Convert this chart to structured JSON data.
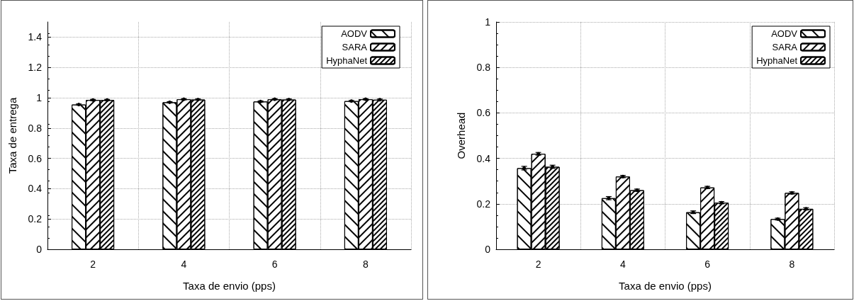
{
  "chart_data": [
    {
      "type": "bar",
      "xlabel": "Taxa de envio (pps)",
      "ylabel": "Taxa de entrega",
      "categories": [
        "2",
        "4",
        "6",
        "8"
      ],
      "ylim": [
        0,
        1.5
      ],
      "yticks": [
        0,
        0.2,
        0.4,
        0.6,
        0.8,
        1,
        1.2,
        1.4
      ],
      "grid": true,
      "legend": "top right",
      "series": [
        {
          "name": "AODV",
          "color": "#ffffff",
          "values": [
            0.955,
            0.97,
            0.975,
            0.978
          ],
          "errors": [
            0.004,
            0.004,
            0.004,
            0.004
          ]
        },
        {
          "name": "SARA",
          "color": "#ffffff",
          "values": [
            0.985,
            0.99,
            0.99,
            0.99
          ],
          "errors": [
            0.004,
            0.004,
            0.004,
            0.004
          ]
        },
        {
          "name": "HyphaNet",
          "color": "#ffffff",
          "values": [
            0.985,
            0.988,
            0.988,
            0.987
          ],
          "errors": [
            0.004,
            0.004,
            0.004,
            0.004
          ]
        }
      ]
    },
    {
      "type": "bar",
      "xlabel": "Taxa de envio (pps)",
      "ylabel": "Overhead",
      "categories": [
        "2",
        "4",
        "6",
        "8"
      ],
      "ylim": [
        0,
        1
      ],
      "yticks": [
        0,
        0.2,
        0.4,
        0.6,
        0.8,
        1
      ],
      "grid": true,
      "legend": "top right",
      "series": [
        {
          "name": "AODV",
          "color": "#ffffff",
          "values": [
            0.357,
            0.225,
            0.163,
            0.133
          ],
          "errors": [
            0.008,
            0.007,
            0.006,
            0.004
          ]
        },
        {
          "name": "SARA",
          "color": "#ffffff",
          "values": [
            0.42,
            0.32,
            0.272,
            0.248
          ],
          "errors": [
            0.006,
            0.005,
            0.005,
            0.005
          ]
        },
        {
          "name": "HyphaNet",
          "color": "#ffffff",
          "values": [
            0.363,
            0.26,
            0.205,
            0.178
          ],
          "errors": [
            0.007,
            0.005,
            0.005,
            0.005
          ]
        }
      ]
    }
  ]
}
